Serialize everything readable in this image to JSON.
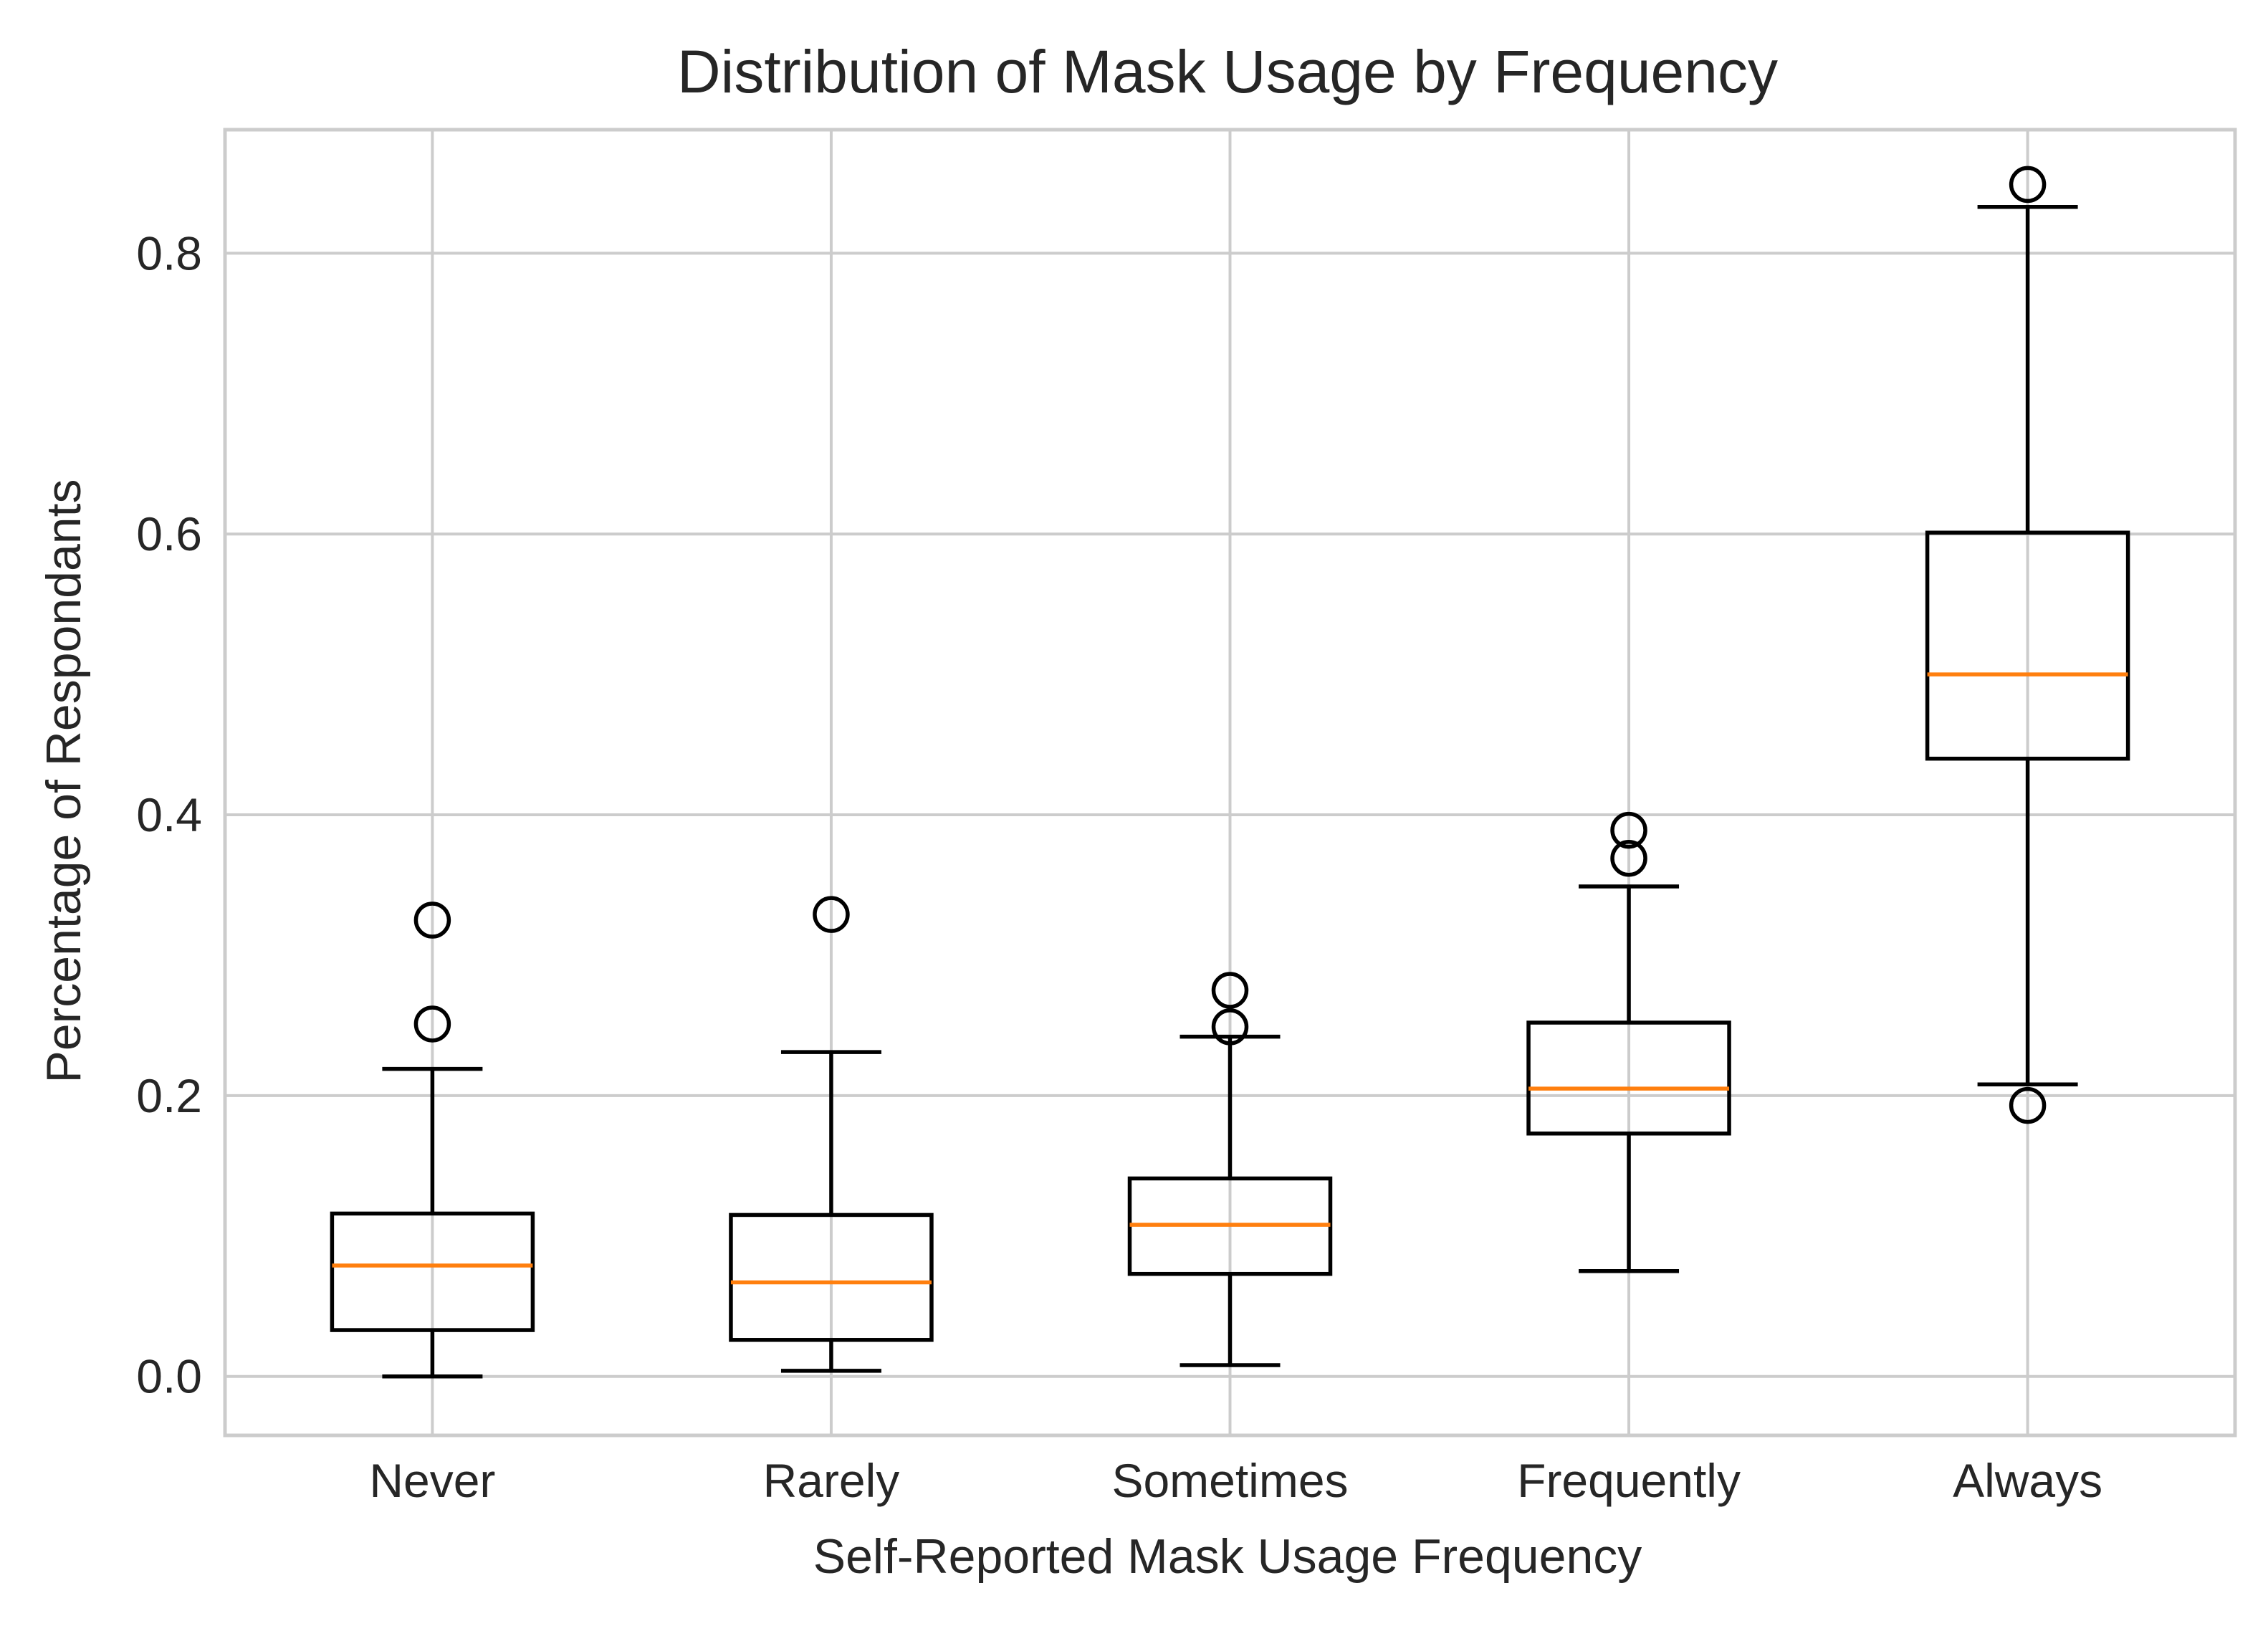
{
  "chart_data": {
    "type": "box",
    "title": "Distribution of Mask Usage by Frequency",
    "xlabel": "Self-Reported Mask Usage Frequency",
    "ylabel": "Percentage of Respondants",
    "ylim": [
      -0.042,
      0.888
    ],
    "yticks": [
      {
        "value": 0.0,
        "label": "0.0"
      },
      {
        "value": 0.2,
        "label": "0.2"
      },
      {
        "value": 0.4,
        "label": "0.4"
      },
      {
        "value": 0.6,
        "label": "0.6"
      },
      {
        "value": 0.8,
        "label": "0.8"
      }
    ],
    "grid": true,
    "categories": [
      "Never",
      "Rarely",
      "Sometimes",
      "Frequently",
      "Always"
    ],
    "boxes": [
      {
        "category": "Never",
        "whisker_low": 0.0,
        "q1": 0.033,
        "median": 0.079,
        "q3": 0.116,
        "whisker_high": 0.219,
        "outliers": [
          0.251,
          0.325
        ]
      },
      {
        "category": "Rarely",
        "whisker_low": 0.004,
        "q1": 0.026,
        "median": 0.067,
        "q3": 0.115,
        "whisker_high": 0.231,
        "outliers": [
          0.329
        ]
      },
      {
        "category": "Sometimes",
        "whisker_low": 0.008,
        "q1": 0.073,
        "median": 0.108,
        "q3": 0.141,
        "whisker_high": 0.242,
        "outliers": [
          0.249,
          0.275
        ]
      },
      {
        "category": "Frequently",
        "whisker_low": 0.075,
        "q1": 0.173,
        "median": 0.205,
        "q3": 0.252,
        "whisker_high": 0.349,
        "outliers": [
          0.369,
          0.389
        ]
      },
      {
        "category": "Always",
        "whisker_low": 0.208,
        "q1": 0.44,
        "median": 0.5,
        "q3": 0.601,
        "whisker_high": 0.833,
        "outliers": [
          0.193,
          0.849
        ]
      }
    ],
    "colors": {
      "box": "#000000",
      "median": "#ff7f0e",
      "grid": "#cccccc",
      "spine": "#cccccc",
      "text": "#262626"
    }
  }
}
